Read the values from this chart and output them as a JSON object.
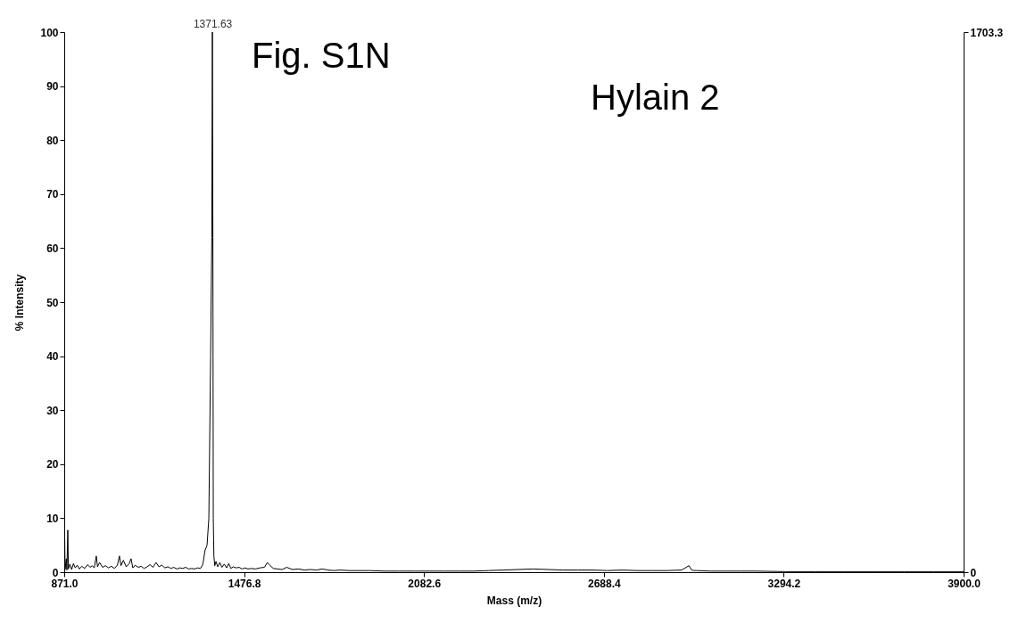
{
  "chart_data": {
    "type": "line",
    "xlabel": "Mass (m/z)",
    "ylabel": "% Intensity",
    "annotations": [
      {
        "text": "1371.63",
        "x": 1371.63,
        "y": 100
      },
      "Fig. S1N",
      "Hylain 2"
    ],
    "xlim": [
      871,
      3900
    ],
    "xticks": [
      {
        "value": 871,
        "label": "871.0"
      },
      1476.8,
      2082.6,
      2688.4,
      3294.2,
      {
        "value": 3900,
        "label": "3900.0"
      }
    ],
    "ylim": [
      0,
      100
    ],
    "yticks": [
      0,
      10,
      20,
      30,
      40,
      50,
      60,
      70,
      80,
      90,
      100
    ],
    "y2lim": [
      0,
      1703.3
    ],
    "y2ticks": [
      0,
      1703.3
    ],
    "grid": false,
    "series": [
      {
        "color": "#000000",
        "x": [
          871,
          872,
          874,
          878,
          880,
          883,
          885,
          890,
          896,
          902,
          908,
          915,
          922,
          930,
          940,
          950,
          958,
          965,
          972,
          979,
          983,
          990,
          1000,
          1010,
          1020,
          1030,
          1040,
          1050,
          1057,
          1062,
          1070,
          1080,
          1090,
          1096,
          1102,
          1110,
          1120,
          1130,
          1140,
          1150,
          1160,
          1170,
          1180,
          1190,
          1200,
          1210,
          1220,
          1230,
          1240,
          1250,
          1260,
          1270,
          1280,
          1290,
          1300,
          1310,
          1320,
          1330,
          1338,
          1345,
          1352,
          1358,
          1364,
          1368,
          1370,
          1371.63,
          1373,
          1375,
          1378,
          1382,
          1388,
          1395,
          1402,
          1410,
          1418,
          1425,
          1432,
          1440,
          1450,
          1460,
          1470,
          1480,
          1490,
          1500,
          1515,
          1530,
          1545,
          1555,
          1565,
          1575,
          1590,
          1605,
          1620,
          1640,
          1660,
          1680,
          1700,
          1720,
          1740,
          1760,
          1780,
          1800,
          1830,
          1860,
          1900,
          1950,
          2000,
          2050,
          2100,
          2150,
          2200,
          2250,
          2300,
          2350,
          2400,
          2450,
          2500,
          2550,
          2600,
          2650,
          2700,
          2750,
          2800,
          2850,
          2900,
          2950,
          2975,
          2984,
          2992,
          3000,
          3050,
          3100,
          3150,
          3200,
          3300,
          3400,
          3500,
          3600,
          3700,
          3800,
          3900
        ],
        "values": [
          0.3,
          8.6,
          0.5,
          2.5,
          0.4,
          7.8,
          0.6,
          1.5,
          0.5,
          1.6,
          0.8,
          1.3,
          0.6,
          1.1,
          0.7,
          1.4,
          0.9,
          1.2,
          0.8,
          3.0,
          1.0,
          1.8,
          0.9,
          1.2,
          0.8,
          1.1,
          0.7,
          1.3,
          3.0,
          1.2,
          2.2,
          1.0,
          1.6,
          2.5,
          0.8,
          1.3,
          0.9,
          1.1,
          0.7,
          1.0,
          1.4,
          0.9,
          1.8,
          1.0,
          1.3,
          0.8,
          1.0,
          0.7,
          0.9,
          0.6,
          0.8,
          0.7,
          0.9,
          0.6,
          0.7,
          0.6,
          0.8,
          0.7,
          1.5,
          4.0,
          5.0,
          10.0,
          40.0,
          62.0,
          100,
          62.0,
          10.0,
          3.0,
          1.2,
          2.0,
          1.0,
          1.8,
          0.9,
          1.5,
          0.8,
          1.6,
          0.7,
          1.0,
          0.8,
          0.9,
          0.6,
          0.8,
          0.6,
          0.7,
          0.6,
          0.8,
          0.9,
          1.8,
          1.2,
          0.7,
          0.6,
          0.5,
          0.9,
          0.5,
          0.6,
          0.4,
          0.5,
          0.4,
          0.6,
          0.4,
          0.3,
          0.4,
          0.3,
          0.3,
          0.3,
          0.2,
          0.2,
          0.2,
          0.2,
          0.2,
          0.2,
          0.2,
          0.3,
          0.4,
          0.5,
          0.6,
          0.5,
          0.4,
          0.4,
          0.4,
          0.3,
          0.4,
          0.3,
          0.3,
          0.3,
          0.4,
          1.2,
          0.4,
          0.3,
          0.3,
          0.2,
          0.2,
          0.2,
          0.2,
          0.1,
          0.1,
          0.1,
          0.1,
          0.1,
          0.1,
          0.1
        ]
      }
    ]
  }
}
